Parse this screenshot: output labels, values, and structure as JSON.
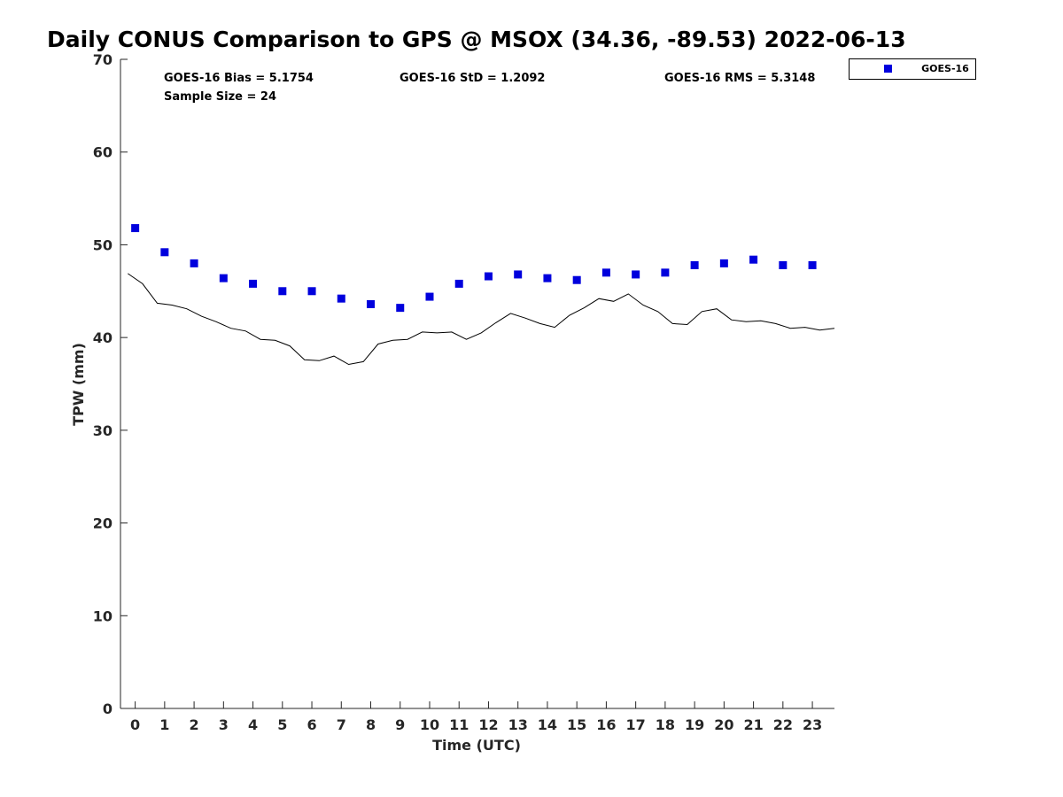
{
  "chart_data": {
    "type": "scatter",
    "title": "Daily CONUS Comparison to GPS @ MSOX (34.36, -89.53) 2022-06-13",
    "xlabel": "Time (UTC)",
    "ylabel": "TPW (mm)",
    "xlim": [
      -0.5,
      23.75
    ],
    "ylim": [
      0,
      70
    ],
    "xticks": [
      0,
      1,
      2,
      3,
      4,
      5,
      6,
      7,
      8,
      9,
      10,
      11,
      12,
      13,
      14,
      15,
      16,
      17,
      18,
      19,
      20,
      21,
      22,
      23
    ],
    "yticks": [
      0,
      10,
      20,
      30,
      40,
      50,
      60,
      70
    ],
    "grid": false,
    "legend_position": "top-right (outside axes)",
    "stats": {
      "bias": "GOES-16 Bias = 5.1754",
      "std": "GOES-16 StD = 1.2092",
      "rms": "GOES-16 RMS = 5.3148",
      "sample": "Sample Size = 24"
    },
    "series": [
      {
        "name": "GOES-16",
        "kind": "scatter",
        "marker": "square",
        "color": "#0000dd",
        "x": [
          0,
          1,
          2,
          3,
          4,
          5,
          6,
          7,
          8,
          9,
          10,
          11,
          12,
          13,
          14,
          15,
          16,
          17,
          18,
          19,
          20,
          21,
          22,
          23
        ],
        "y": [
          51.8,
          49.2,
          48.0,
          46.4,
          45.8,
          45.0,
          45.0,
          44.2,
          43.6,
          43.2,
          44.4,
          45.8,
          46.6,
          46.8,
          46.4,
          46.2,
          47.0,
          46.8,
          47.0,
          47.8,
          48.0,
          48.4,
          47.8,
          47.8
        ]
      },
      {
        "kind": "line",
        "color": "#000000",
        "x": [
          -0.25,
          0.25,
          0.75,
          1.25,
          1.75,
          2.25,
          2.75,
          3.25,
          3.75,
          4.25,
          4.75,
          5.25,
          5.75,
          6.25,
          6.75,
          7.25,
          7.75,
          8.25,
          8.75,
          9.25,
          9.75,
          10.25,
          10.75,
          11.25,
          11.75,
          12.25,
          12.75,
          13.25,
          13.75,
          14.25,
          14.75,
          15.25,
          15.75,
          16.25,
          16.75,
          17.25,
          17.75,
          18.25,
          18.75,
          19.25,
          19.75,
          20.25,
          20.75,
          21.25,
          21.75,
          22.25,
          22.75,
          23.25,
          23.75
        ],
        "y": [
          46.9,
          45.8,
          43.7,
          43.5,
          43.1,
          42.3,
          41.7,
          41.0,
          40.7,
          39.8,
          39.7,
          39.1,
          37.6,
          37.5,
          38.0,
          37.1,
          37.4,
          39.3,
          39.7,
          39.8,
          40.6,
          40.5,
          40.6,
          39.8,
          40.5,
          41.6,
          42.6,
          42.1,
          41.5,
          41.1,
          42.4,
          43.2,
          44.2,
          43.9,
          44.7,
          43.5,
          42.8,
          41.5,
          41.4,
          42.8,
          43.1,
          41.9,
          41.7,
          41.8,
          41.5,
          41.0,
          41.1,
          40.8,
          41.0
        ]
      }
    ]
  }
}
